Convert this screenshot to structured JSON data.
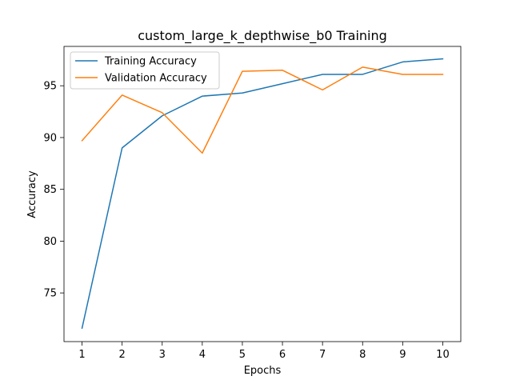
{
  "chart_data": {
    "type": "line",
    "title": "custom_large_k_depthwise_b0 Training",
    "xlabel": "Epochs",
    "ylabel": "Accuracy",
    "x": [
      1,
      2,
      3,
      4,
      5,
      6,
      7,
      8,
      9,
      10
    ],
    "xticks": [
      1,
      2,
      3,
      4,
      5,
      6,
      7,
      8,
      9,
      10
    ],
    "yticks": [
      75,
      80,
      85,
      90,
      95
    ],
    "xlim": [
      0.55,
      10.45
    ],
    "ylim": [
      70.3,
      98.8
    ],
    "grid": false,
    "legend_position": "upper left",
    "series": [
      {
        "name": "Training Accuracy",
        "color": "#1f77b4",
        "values": [
          71.6,
          89.0,
          92.1,
          94.0,
          94.3,
          95.2,
          96.1,
          96.1,
          97.3,
          97.6
        ]
      },
      {
        "name": "Validation Accuracy",
        "color": "#ff7f0e",
        "values": [
          89.7,
          94.1,
          92.4,
          88.5,
          96.4,
          96.5,
          94.6,
          96.8,
          96.1,
          96.1
        ]
      }
    ]
  }
}
